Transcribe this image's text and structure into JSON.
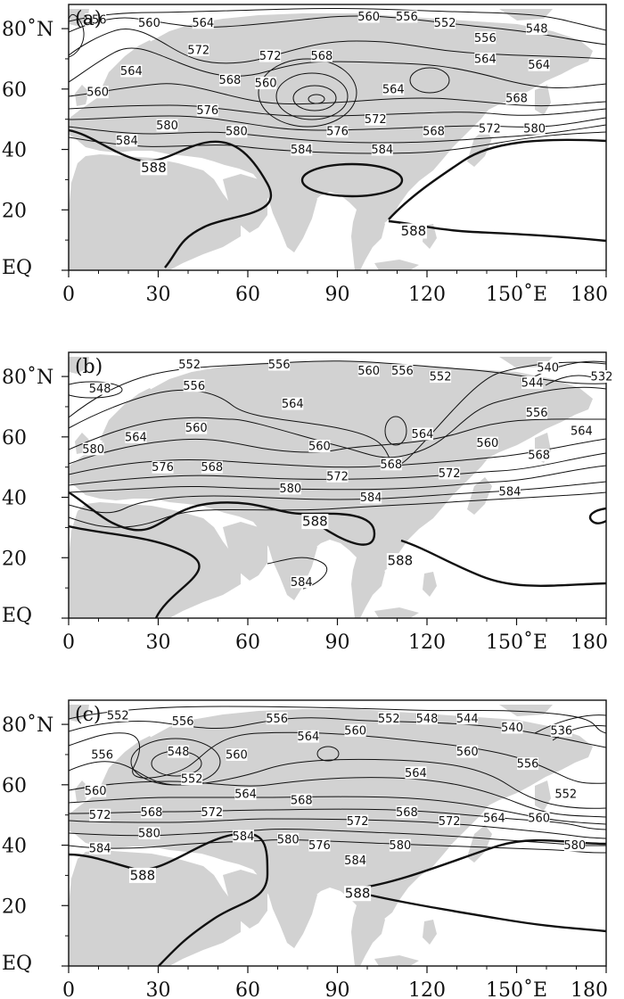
{
  "figure": {
    "x_ticks": [
      "0",
      "30",
      "60",
      "90",
      "120",
      "150˚E",
      "180"
    ],
    "y_ticks": [
      "EQ",
      "20",
      "40",
      "60",
      "80˚N"
    ],
    "colors": {
      "land": "#d2d2d2",
      "contour": "#111111",
      "background": "#ffffff"
    },
    "panels": [
      {
        "id": "a",
        "label": "(a)",
        "contour_labels": [
          {
            "text": "556",
            "lon": 12,
            "lat": 83
          },
          {
            "text": "560",
            "lon": 36,
            "lat": 82
          },
          {
            "text": "564",
            "lon": 60,
            "lat": 82
          },
          {
            "text": "572",
            "lon": 58,
            "lat": 73
          },
          {
            "text": "564",
            "lon": 28,
            "lat": 66
          },
          {
            "text": "560",
            "lon": 13,
            "lat": 59
          },
          {
            "text": "572",
            "lon": 90,
            "lat": 71
          },
          {
            "text": "568",
            "lon": 72,
            "lat": 63
          },
          {
            "text": "560",
            "lon": 88,
            "lat": 62
          },
          {
            "text": "568",
            "lon": 113,
            "lat": 71
          },
          {
            "text": "560",
            "lon": 134,
            "lat": 84
          },
          {
            "text": "556",
            "lon": 151,
            "lat": 84
          },
          {
            "text": "552",
            "lon": 168,
            "lat": 82
          },
          {
            "text": "556",
            "lon": 186,
            "lat": 77
          },
          {
            "text": "548",
            "lon": 209,
            "lat": 80
          },
          {
            "text": "564",
            "lon": 186,
            "lat": 70
          },
          {
            "text": "564",
            "lon": 210,
            "lat": 68
          },
          {
            "text": "564",
            "lon": 145,
            "lat": 60
          },
          {
            "text": "568",
            "lon": 200,
            "lat": 57
          },
          {
            "text": "576",
            "lon": 62,
            "lat": 53
          },
          {
            "text": "580",
            "lon": 44,
            "lat": 48
          },
          {
            "text": "572",
            "lon": 137,
            "lat": 50
          },
          {
            "text": "576",
            "lon": 120,
            "lat": 46
          },
          {
            "text": "568",
            "lon": 163,
            "lat": 46
          },
          {
            "text": "572",
            "lon": 188,
            "lat": 47
          },
          {
            "text": "580",
            "lon": 208,
            "lat": 47
          },
          {
            "text": "584",
            "lon": 26,
            "lat": 43
          },
          {
            "text": "580",
            "lon": 75,
            "lat": 46
          },
          {
            "text": "584",
            "lon": 104,
            "lat": 40
          },
          {
            "text": "584",
            "lon": 140,
            "lat": 40
          },
          {
            "text": "588",
            "lon": 38,
            "lat": 34,
            "bold": true
          },
          {
            "text": "588",
            "lon": 154,
            "lat": 13,
            "bold": true
          }
        ]
      },
      {
        "id": "b",
        "label": "(b)",
        "contour_labels": [
          {
            "text": "552",
            "lon": 54,
            "lat": 84
          },
          {
            "text": "556",
            "lon": 94,
            "lat": 84
          },
          {
            "text": "556",
            "lon": 56,
            "lat": 77
          },
          {
            "text": "560",
            "lon": 134,
            "lat": 82
          },
          {
            "text": "556",
            "lon": 149,
            "lat": 82
          },
          {
            "text": "552",
            "lon": 166,
            "lat": 80
          },
          {
            "text": "540",
            "lon": 214,
            "lat": 83
          },
          {
            "text": "532",
            "lon": 238,
            "lat": 80
          },
          {
            "text": "544",
            "lon": 207,
            "lat": 78
          },
          {
            "text": "548",
            "lon": 14,
            "lat": 76
          },
          {
            "text": "564",
            "lon": 100,
            "lat": 71
          },
          {
            "text": "564",
            "lon": 30,
            "lat": 60
          },
          {
            "text": "560",
            "lon": 57,
            "lat": 63
          },
          {
            "text": "564",
            "lon": 158,
            "lat": 61
          },
          {
            "text": "560",
            "lon": 187,
            "lat": 58
          },
          {
            "text": "556",
            "lon": 209,
            "lat": 68
          },
          {
            "text": "564",
            "lon": 229,
            "lat": 62
          },
          {
            "text": "560",
            "lon": 112,
            "lat": 57
          },
          {
            "text": "568",
            "lon": 210,
            "lat": 54
          },
          {
            "text": "580",
            "lon": 11,
            "lat": 56
          },
          {
            "text": "576",
            "lon": 42,
            "lat": 50
          },
          {
            "text": "568",
            "lon": 64,
            "lat": 50
          },
          {
            "text": "568",
            "lon": 144,
            "lat": 51
          },
          {
            "text": "572",
            "lon": 120,
            "lat": 47
          },
          {
            "text": "572",
            "lon": 170,
            "lat": 48
          },
          {
            "text": "580",
            "lon": 99,
            "lat": 43
          },
          {
            "text": "584",
            "lon": 135,
            "lat": 40
          },
          {
            "text": "584",
            "lon": 197,
            "lat": 42
          },
          {
            "text": "588",
            "lon": 110,
            "lat": 32,
            "bold": true
          },
          {
            "text": "588",
            "lon": 148,
            "lat": 19,
            "bold": true
          },
          {
            "text": "584",
            "lon": 104,
            "lat": 12
          }
        ]
      },
      {
        "id": "c",
        "label": "(c)",
        "contour_labels": [
          {
            "text": "552",
            "lon": 22,
            "lat": 83
          },
          {
            "text": "556",
            "lon": 51,
            "lat": 81
          },
          {
            "text": "556",
            "lon": 93,
            "lat": 82
          },
          {
            "text": "564",
            "lon": 107,
            "lat": 76
          },
          {
            "text": "560",
            "lon": 128,
            "lat": 78
          },
          {
            "text": "552",
            "lon": 143,
            "lat": 82
          },
          {
            "text": "548",
            "lon": 160,
            "lat": 82
          },
          {
            "text": "544",
            "lon": 178,
            "lat": 82
          },
          {
            "text": "540",
            "lon": 198,
            "lat": 79
          },
          {
            "text": "536",
            "lon": 220,
            "lat": 78
          },
          {
            "text": "556",
            "lon": 15,
            "lat": 70
          },
          {
            "text": "548",
            "lon": 49,
            "lat": 71
          },
          {
            "text": "560",
            "lon": 75,
            "lat": 70
          },
          {
            "text": "552",
            "lon": 55,
            "lat": 62
          },
          {
            "text": "560",
            "lon": 178,
            "lat": 71
          },
          {
            "text": "564",
            "lon": 155,
            "lat": 64
          },
          {
            "text": "556",
            "lon": 205,
            "lat": 67
          },
          {
            "text": "552",
            "lon": 222,
            "lat": 57
          },
          {
            "text": "560",
            "lon": 12,
            "lat": 58
          },
          {
            "text": "564",
            "lon": 79,
            "lat": 57
          },
          {
            "text": "568",
            "lon": 104,
            "lat": 55
          },
          {
            "text": "564",
            "lon": 190,
            "lat": 49
          },
          {
            "text": "560",
            "lon": 210,
            "lat": 49
          },
          {
            "text": "572",
            "lon": 14,
            "lat": 50
          },
          {
            "text": "568",
            "lon": 37,
            "lat": 51
          },
          {
            "text": "572",
            "lon": 64,
            "lat": 51
          },
          {
            "text": "572",
            "lon": 129,
            "lat": 48
          },
          {
            "text": "568",
            "lon": 151,
            "lat": 51
          },
          {
            "text": "572",
            "lon": 170,
            "lat": 48
          },
          {
            "text": "580",
            "lon": 36,
            "lat": 44
          },
          {
            "text": "584",
            "lon": 78,
            "lat": 43
          },
          {
            "text": "580",
            "lon": 98,
            "lat": 42
          },
          {
            "text": "576",
            "lon": 112,
            "lat": 40
          },
          {
            "text": "580",
            "lon": 148,
            "lat": 40
          },
          {
            "text": "580",
            "lon": 226,
            "lat": 40
          },
          {
            "text": "584",
            "lon": 14,
            "lat": 39
          },
          {
            "text": "584",
            "lon": 128,
            "lat": 35
          },
          {
            "text": "588",
            "lon": 33,
            "lat": 30,
            "bold": true
          },
          {
            "text": "588",
            "lon": 129,
            "lat": 24,
            "bold": true
          }
        ]
      }
    ]
  }
}
